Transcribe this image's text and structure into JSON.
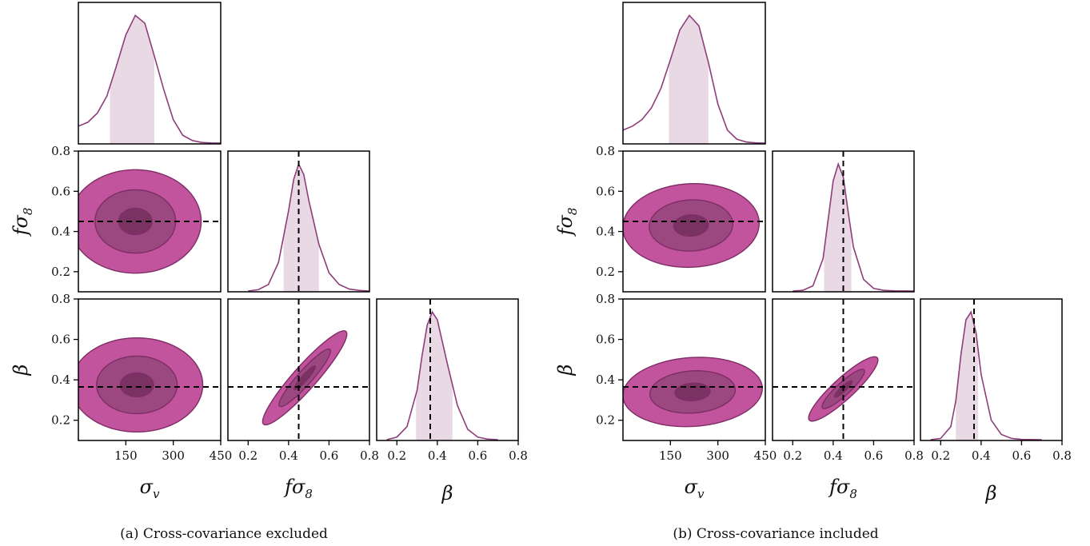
{
  "chart_data": [
    {
      "type": "corner",
      "caption": "(a) Cross-covariance excluded",
      "params": [
        "σ_v",
        "fσ_8",
        "β"
      ],
      "axis_labels": {
        "sigma_v": "σ",
        "sigma_v_sub": "v",
        "fs8": "fσ",
        "fs8_sub": "8",
        "beta": "β"
      },
      "xlim": {
        "sigma_v": [
          0,
          450
        ],
        "fs8": [
          0.1,
          0.8
        ],
        "beta": [
          0.1,
          0.8
        ]
      },
      "ylim": {
        "fs8": [
          0.1,
          0.8
        ],
        "beta": [
          0.1,
          0.8
        ]
      },
      "ticks": {
        "sigma_v": [
          "150",
          "300",
          "450"
        ],
        "fs8": [
          "0.2",
          "0.4",
          "0.6",
          "0.8"
        ],
        "beta": [
          "0.2",
          "0.4",
          "0.6",
          "0.8"
        ]
      },
      "truth": {
        "fs8": 0.45,
        "beta": 0.365
      },
      "marginals": {
        "sigma_v": {
          "x": [
            0,
            30,
            60,
            90,
            120,
            150,
            180,
            210,
            240,
            270,
            300,
            330,
            360,
            390,
            420,
            450
          ],
          "y": [
            0.13,
            0.16,
            0.23,
            0.36,
            0.59,
            0.83,
            0.98,
            0.92,
            0.67,
            0.41,
            0.18,
            0.06,
            0.02,
            0.005,
            0.001,
            0.0
          ],
          "interval": [
            100,
            240
          ]
        },
        "fs8": {
          "x": [
            0.2,
            0.25,
            0.3,
            0.35,
            0.4,
            0.425,
            0.45,
            0.475,
            0.5,
            0.55,
            0.6,
            0.65,
            0.7,
            0.75,
            0.8
          ],
          "y": [
            0.0,
            0.01,
            0.05,
            0.22,
            0.62,
            0.86,
            0.98,
            0.9,
            0.7,
            0.36,
            0.14,
            0.05,
            0.015,
            0.004,
            0.0
          ],
          "interval": [
            0.375,
            0.55
          ]
        },
        "beta": {
          "x": [
            0.15,
            0.2,
            0.25,
            0.3,
            0.325,
            0.35,
            0.375,
            0.4,
            0.45,
            0.5,
            0.55,
            0.6,
            0.65,
            0.7
          ],
          "y": [
            0.0,
            0.02,
            0.1,
            0.38,
            0.65,
            0.88,
            0.98,
            0.92,
            0.58,
            0.26,
            0.08,
            0.02,
            0.004,
            0.0
          ],
          "interval": [
            0.295,
            0.475
          ]
        }
      },
      "contours": {
        "sigma_v_fs8": {
          "center": [
            180,
            0.45
          ],
          "sd": [
            85,
            0.105
          ],
          "rho": 0.0
        },
        "sigma_v_beta": {
          "center": [
            185,
            0.375
          ],
          "sd": [
            85,
            0.095
          ],
          "rho": 0.0
        },
        "fs8_beta": {
          "center": [
            0.48,
            0.41
          ],
          "sd": [
            0.085,
            0.095
          ],
          "rho": 0.93
        }
      }
    },
    {
      "type": "corner",
      "caption": "(b) Cross-covariance included",
      "params": [
        "σ_v",
        "fσ_8",
        "β"
      ],
      "axis_labels": {
        "sigma_v": "σ",
        "sigma_v_sub": "v",
        "fs8": "fσ",
        "fs8_sub": "8",
        "beta": "β"
      },
      "xlim": {
        "sigma_v": [
          0,
          450
        ],
        "fs8": [
          0.1,
          0.8
        ],
        "beta": [
          0.1,
          0.8
        ]
      },
      "ylim": {
        "fs8": [
          0.1,
          0.8
        ],
        "beta": [
          0.1,
          0.8
        ]
      },
      "ticks": {
        "sigma_v": [
          "150",
          "300",
          "450"
        ],
        "fs8": [
          "0.2",
          "0.4",
          "0.6",
          "0.8"
        ],
        "beta": [
          "0.2",
          "0.4",
          "0.6",
          "0.8"
        ]
      },
      "truth": {
        "fs8": 0.45,
        "beta": 0.365
      },
      "marginals": {
        "sigma_v": {
          "x": [
            0,
            30,
            60,
            90,
            120,
            150,
            180,
            210,
            240,
            270,
            300,
            330,
            360,
            390,
            420,
            450
          ],
          "y": [
            0.1,
            0.13,
            0.18,
            0.27,
            0.42,
            0.64,
            0.87,
            0.98,
            0.9,
            0.62,
            0.3,
            0.1,
            0.03,
            0.008,
            0.002,
            0.0
          ],
          "interval": [
            145,
            270
          ]
        },
        "fs8": {
          "x": [
            0.2,
            0.25,
            0.3,
            0.35,
            0.375,
            0.4,
            0.425,
            0.45,
            0.475,
            0.5,
            0.55,
            0.6,
            0.65,
            0.7,
            0.8
          ],
          "y": [
            0.0,
            0.005,
            0.04,
            0.25,
            0.55,
            0.85,
            0.98,
            0.88,
            0.6,
            0.34,
            0.09,
            0.02,
            0.005,
            0.001,
            0.0
          ],
          "interval": [
            0.355,
            0.49
          ]
        },
        "beta": {
          "x": [
            0.15,
            0.2,
            0.25,
            0.275,
            0.3,
            0.325,
            0.35,
            0.375,
            0.4,
            0.45,
            0.5,
            0.55,
            0.6,
            0.7
          ],
          "y": [
            0.0,
            0.01,
            0.1,
            0.3,
            0.65,
            0.92,
            0.98,
            0.82,
            0.5,
            0.15,
            0.04,
            0.01,
            0.002,
            0.0
          ],
          "interval": [
            0.275,
            0.385
          ]
        }
      },
      "contours": {
        "sigma_v_fs8": {
          "center": [
            215,
            0.43
          ],
          "sd": [
            88,
            0.085
          ],
          "rho": 0.05
        },
        "sigma_v_beta": {
          "center": [
            220,
            0.34
          ],
          "sd": [
            90,
            0.07
          ],
          "rho": 0.1
        },
        "fs8_beta": {
          "center": [
            0.45,
            0.355
          ],
          "sd": [
            0.07,
            0.065
          ],
          "rho": 0.9
        }
      }
    }
  ],
  "colors": {
    "outer": "#c1549d",
    "middle": "#9b4880",
    "inner": "#7a3262",
    "edge": "#7e2d66",
    "line": "#8e3d7a",
    "band": "#e9d9e4",
    "truth": "#000000"
  }
}
